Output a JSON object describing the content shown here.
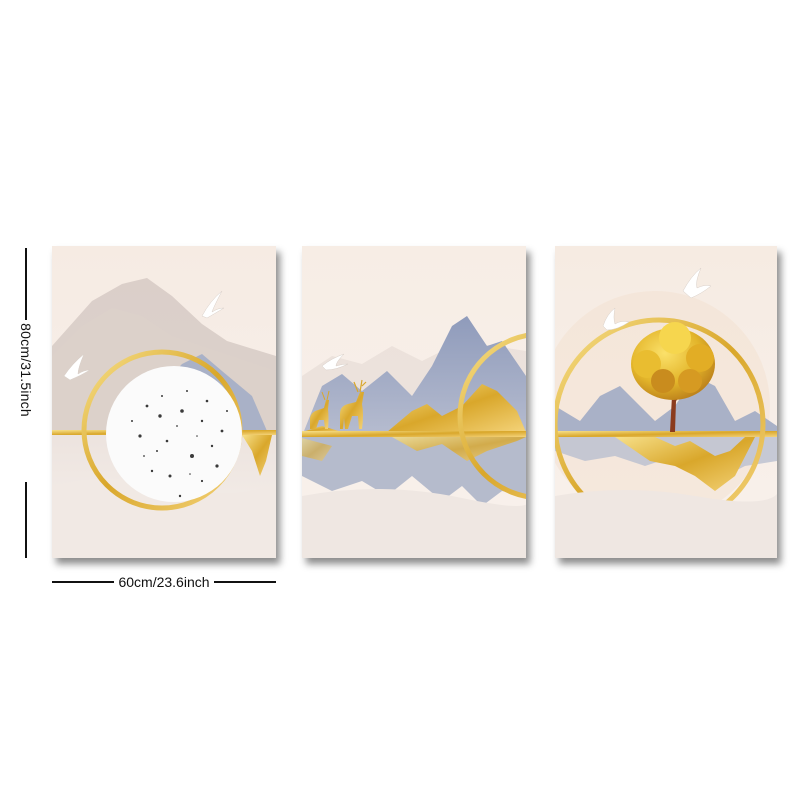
{
  "dimensions": {
    "height_label": "80cm/31.5inch",
    "width_label": "60cm/23.6inch"
  },
  "panels": [
    {
      "id": "left",
      "subject": "marble moon in gold ring with mountains and birds"
    },
    {
      "id": "middle",
      "subject": "golden deer on gold line with blue and gold mountains"
    },
    {
      "id": "right",
      "subject": "golden tree inside gold ring with birds"
    }
  ],
  "colors": {
    "background": "#f6ece4",
    "gold": "#e0b233",
    "mountain_blue": "#a8b0c6",
    "mountain_gray": "#cfc2bb"
  }
}
